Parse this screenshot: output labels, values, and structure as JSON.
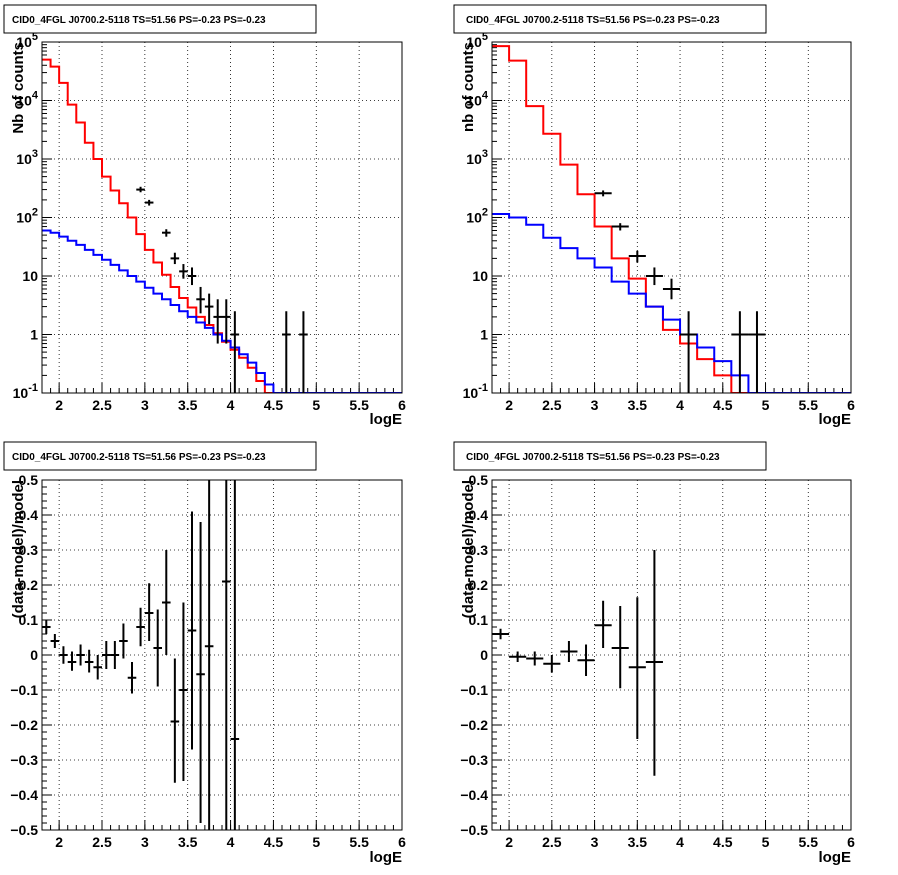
{
  "chart_data": [
    {
      "type": "line",
      "title": "CID0_4FGL J0700.2-5118 TS=51.56 PS=-0.23 PS=-0.23",
      "xlabel": "logE",
      "ylabel": "Nb of counts",
      "xlim": [
        1.8,
        6.0
      ],
      "ylim": [
        0.1,
        100000
      ],
      "yscale": "log",
      "grid": true,
      "x_ticks": [
        "2",
        "2.5",
        "3",
        "3.5",
        "4",
        "4.5",
        "5",
        "5.5",
        "6"
      ],
      "y_ticks": [
        "10^-1",
        "1",
        "10",
        "10^2",
        "10^3",
        "10^4",
        "10^5"
      ],
      "bin_width": 0.1,
      "bin_start": 1.8,
      "series": [
        {
          "style": "step",
          "color": "#ff0000",
          "values": [
            50000,
            38000,
            20000,
            8500,
            4200,
            1900,
            1000,
            500,
            290,
            175,
            100,
            52,
            28,
            17,
            10.5,
            6.5,
            4.2,
            2.9,
            2.0,
            1.45,
            1.05,
            0.75,
            0.55,
            0.4,
            0.27,
            0.16,
            0.1,
            0.1,
            0.1,
            0.1,
            0.1,
            0.1,
            0.1,
            0.1,
            0.1,
            0.1,
            0.1,
            0.1,
            0.1,
            0.1,
            0.1,
            0.1
          ]
        },
        {
          "style": "step",
          "color": "#0000ff",
          "values": [
            60,
            55,
            47,
            40,
            34,
            28,
            23,
            19,
            15.5,
            12.5,
            10,
            8,
            6.3,
            5,
            4,
            3.2,
            2.5,
            2.0,
            1.6,
            1.3,
            1.0,
            0.78,
            0.6,
            0.46,
            0.33,
            0.22,
            0.14,
            0.1,
            0.1,
            0.1,
            0.1,
            0.1,
            0.1,
            0.1,
            0.1,
            0.1,
            0.1,
            0.1,
            0.1,
            0.1,
            0.1,
            0.1
          ]
        },
        {
          "style": "errorbar",
          "color": "#000000",
          "points": [
            {
              "x": 2.95,
              "y": 300,
              "lo": 270,
              "hi": 335
            },
            {
              "x": 3.05,
              "y": 180,
              "lo": 160,
              "hi": 200
            },
            {
              "x": 3.25,
              "y": 55,
              "lo": 47,
              "hi": 63
            },
            {
              "x": 3.35,
              "y": 20,
              "lo": 16,
              "hi": 25
            },
            {
              "x": 3.45,
              "y": 12,
              "lo": 9,
              "hi": 16
            },
            {
              "x": 3.55,
              "y": 10,
              "lo": 7,
              "hi": 14
            },
            {
              "x": 3.65,
              "y": 4,
              "lo": 2.3,
              "hi": 6.5
            },
            {
              "x": 3.75,
              "y": 3,
              "lo": 1.5,
              "hi": 5
            },
            {
              "x": 3.85,
              "y": 2,
              "lo": 0.7,
              "hi": 4
            },
            {
              "x": 3.95,
              "y": 2,
              "lo": 0.7,
              "hi": 4
            },
            {
              "x": 4.05,
              "y": 1,
              "lo": 0.1,
              "hi": 2.5
            },
            {
              "x": 4.65,
              "y": 1,
              "lo": 0.1,
              "hi": 2.5
            },
            {
              "x": 4.85,
              "y": 1,
              "lo": 0.1,
              "hi": 2.5
            }
          ]
        }
      ]
    },
    {
      "type": "line",
      "title": "CID0_4FGL J0700.2-5118 TS=51.56 PS=-0.23 PS=-0.23",
      "xlabel": "logE",
      "ylabel": "nb of counts",
      "xlim": [
        1.8,
        6.0
      ],
      "ylim": [
        0.1,
        100000
      ],
      "yscale": "log",
      "grid": true,
      "x_ticks": [
        "2",
        "2.5",
        "3",
        "3.5",
        "4",
        "4.5",
        "5",
        "5.5",
        "6"
      ],
      "y_ticks": [
        "10^-1",
        "1",
        "10",
        "10^2",
        "10^3",
        "10^4",
        "10^5"
      ],
      "bin_width": 0.2,
      "bin_start": 1.8,
      "series": [
        {
          "style": "step",
          "color": "#ff0000",
          "values": [
            85000,
            48000,
            8000,
            2700,
            800,
            250,
            70,
            20,
            9,
            3,
            1.2,
            0.7,
            0.38,
            0.2,
            0.1,
            0.1,
            0.1,
            0.1,
            0.1,
            0.1,
            0.1
          ]
        },
        {
          "style": "step",
          "color": "#0000ff",
          "values": [
            115,
            100,
            75,
            45,
            30,
            20,
            14,
            8,
            5,
            3,
            1.8,
            1.0,
            0.6,
            0.35,
            0.2,
            0.1,
            0.1,
            0.1,
            0.1,
            0.1,
            0.1
          ]
        },
        {
          "style": "errorbar",
          "color": "#000000",
          "points": [
            {
              "x": 3.1,
              "y": 260,
              "lo": 230,
              "hi": 290
            },
            {
              "x": 3.3,
              "y": 70,
              "lo": 60,
              "hi": 80
            },
            {
              "x": 3.5,
              "y": 22,
              "lo": 17,
              "hi": 27
            },
            {
              "x": 3.7,
              "y": 10,
              "lo": 7,
              "hi": 14
            },
            {
              "x": 3.9,
              "y": 6,
              "lo": 4,
              "hi": 9
            },
            {
              "x": 4.1,
              "y": 1,
              "lo": 0.1,
              "hi": 2.5
            },
            {
              "x": 4.7,
              "y": 1,
              "lo": 0.1,
              "hi": 2.5
            },
            {
              "x": 4.9,
              "y": 1,
              "lo": 0.1,
              "hi": 2.5
            }
          ]
        }
      ]
    },
    {
      "type": "scatter",
      "title": "CID0_4FGL J0700.2-5118 TS=51.56 PS=-0.23 PS=-0.23",
      "xlabel": "logE",
      "ylabel": "(data-model)/model",
      "xlim": [
        1.8,
        6.0
      ],
      "ylim": [
        -0.5,
        0.5
      ],
      "grid": true,
      "x_ticks": [
        "2",
        "2.5",
        "3",
        "3.5",
        "4",
        "4.5",
        "5",
        "5.5",
        "6"
      ],
      "y_ticks": [
        "-0.5",
        "-0.4",
        "-0.3",
        "-0.2",
        "-0.1",
        "0",
        "0.1",
        "0.2",
        "0.3",
        "0.4",
        "0.5"
      ],
      "xerr": 0.05,
      "points": [
        {
          "x": 1.85,
          "y": 0.08,
          "lo": 0.06,
          "hi": 0.1
        },
        {
          "x": 1.95,
          "y": 0.04,
          "lo": 0.02,
          "hi": 0.06
        },
        {
          "x": 2.05,
          "y": 0.0,
          "lo": -0.025,
          "hi": 0.025
        },
        {
          "x": 2.15,
          "y": -0.02,
          "lo": -0.045,
          "hi": 0.01
        },
        {
          "x": 2.25,
          "y": 0.0,
          "lo": -0.03,
          "hi": 0.03
        },
        {
          "x": 2.35,
          "y": -0.02,
          "lo": -0.05,
          "hi": 0.015
        },
        {
          "x": 2.45,
          "y": -0.035,
          "lo": -0.07,
          "hi": 0.0
        },
        {
          "x": 2.55,
          "y": 0.0,
          "lo": -0.04,
          "hi": 0.04
        },
        {
          "x": 2.65,
          "y": 0.0,
          "lo": -0.04,
          "hi": 0.04
        },
        {
          "x": 2.75,
          "y": 0.04,
          "lo": -0.01,
          "hi": 0.09
        },
        {
          "x": 2.85,
          "y": -0.065,
          "lo": -0.11,
          "hi": -0.02
        },
        {
          "x": 2.95,
          "y": 0.08,
          "lo": 0.025,
          "hi": 0.135
        },
        {
          "x": 3.05,
          "y": 0.12,
          "lo": 0.04,
          "hi": 0.205
        },
        {
          "x": 3.15,
          "y": 0.02,
          "lo": -0.09,
          "hi": 0.13
        },
        {
          "x": 3.25,
          "y": 0.15,
          "lo": 0.0,
          "hi": 0.3
        },
        {
          "x": 3.35,
          "y": -0.19,
          "lo": -0.365,
          "hi": -0.01
        },
        {
          "x": 3.45,
          "y": -0.1,
          "lo": -0.36,
          "hi": 0.15
        },
        {
          "x": 3.55,
          "y": 0.07,
          "lo": -0.27,
          "hi": 0.41
        },
        {
          "x": 3.65,
          "y": -0.055,
          "lo": -0.48,
          "hi": 0.38
        },
        {
          "x": 3.75,
          "y": 0.025,
          "lo": -0.5,
          "hi": 0.5
        },
        {
          "x": 3.95,
          "y": 0.21,
          "lo": -0.5,
          "hi": 0.5
        },
        {
          "x": 4.05,
          "y": -0.24,
          "lo": -0.5,
          "hi": 0.5
        }
      ]
    },
    {
      "type": "scatter",
      "title": "CID0_4FGL J0700.2-5118 TS=51.56 PS=-0.23 PS=-0.23",
      "xlabel": "logE",
      "ylabel": "(data-model)/model",
      "xlim": [
        1.8,
        6.0
      ],
      "ylim": [
        -0.5,
        0.5
      ],
      "grid": true,
      "x_ticks": [
        "2",
        "2.5",
        "3",
        "3.5",
        "4",
        "4.5",
        "5",
        "5.5",
        "6"
      ],
      "y_ticks": [
        "-0.5",
        "-0.4",
        "-0.3",
        "-0.2",
        "-0.1",
        "0",
        "0.1",
        "0.2",
        "0.3",
        "0.4",
        "0.5"
      ],
      "xerr": 0.1,
      "points": [
        {
          "x": 1.9,
          "y": 0.06,
          "lo": 0.045,
          "hi": 0.075
        },
        {
          "x": 2.1,
          "y": -0.005,
          "lo": -0.02,
          "hi": 0.01
        },
        {
          "x": 2.3,
          "y": -0.01,
          "lo": -0.03,
          "hi": 0.01
        },
        {
          "x": 2.5,
          "y": -0.025,
          "lo": -0.05,
          "hi": 0.0
        },
        {
          "x": 2.7,
          "y": 0.01,
          "lo": -0.02,
          "hi": 0.04
        },
        {
          "x": 2.9,
          "y": -0.015,
          "lo": -0.06,
          "hi": 0.03
        },
        {
          "x": 3.1,
          "y": 0.085,
          "lo": 0.02,
          "hi": 0.155
        },
        {
          "x": 3.3,
          "y": 0.02,
          "lo": -0.095,
          "hi": 0.14
        },
        {
          "x": 3.5,
          "y": -0.035,
          "lo": -0.24,
          "hi": 0.165
        },
        {
          "x": 3.7,
          "y": -0.02,
          "lo": -0.345,
          "hi": 0.3
        }
      ]
    }
  ]
}
